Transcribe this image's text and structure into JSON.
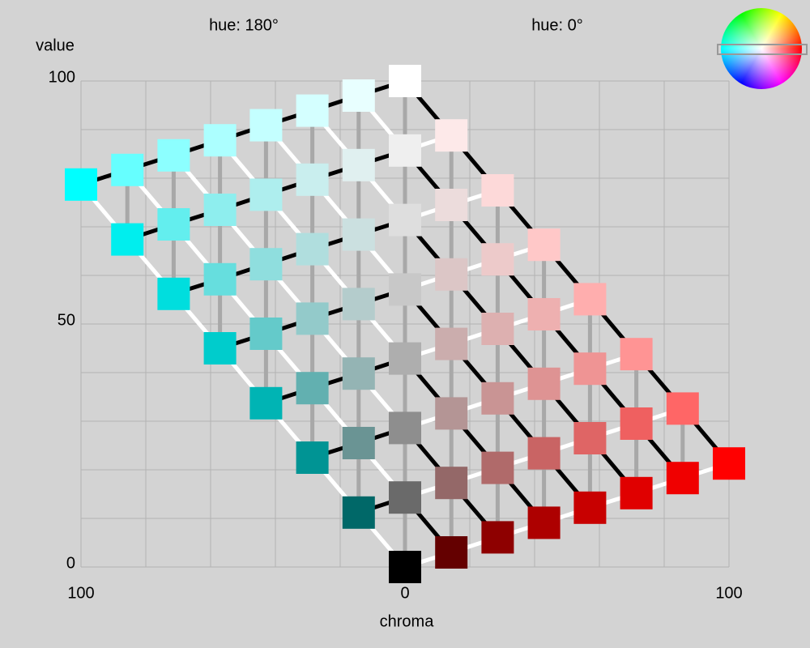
{
  "chart_data": {
    "type": "lattice",
    "xlabel": "chroma",
    "ylabel": "value",
    "hue_labels": [
      "hue: 180°",
      "hue: 0°"
    ],
    "xlim": [
      -100,
      100
    ],
    "ylim": [
      0,
      100
    ],
    "xticks": [
      {
        "value": -100,
        "label": "100"
      },
      0,
      {
        "value": 100,
        "label": "100"
      }
    ],
    "yticks": [
      0,
      50,
      100
    ],
    "grid": true,
    "xgrid": [
      -100,
      -80,
      -60,
      -40,
      -20,
      0,
      20,
      40,
      60,
      80,
      100
    ],
    "ygrid": [
      0,
      10,
      20,
      30,
      40,
      50,
      60,
      70,
      80,
      90,
      100
    ],
    "columns": [
      {
        "x": -100,
        "values": [
          78.7
        ],
        "colors": [
          "#00ffff"
        ]
      },
      {
        "x": -85.7,
        "values": [
          67.4,
          81.7
        ],
        "colors": [
          "#00eeee",
          "#66ffff"
        ]
      },
      {
        "x": -71.4,
        "values": [
          56.2,
          70.5,
          84.7
        ],
        "colors": [
          "#00dede",
          "#63eeee",
          "#8cffff"
        ]
      },
      {
        "x": -57.1,
        "values": [
          45.0,
          59.2,
          73.5,
          87.8
        ],
        "colors": [
          "#00cccc",
          "#66dede",
          "#8eeeee",
          "#acffff"
        ]
      },
      {
        "x": -42.9,
        "values": [
          33.7,
          48.0,
          62.3,
          76.6,
          90.9
        ],
        "colors": [
          "#00b4b4",
          "#64caca",
          "#8fdede",
          "#aeeeee",
          "#c4ffff"
        ]
      },
      {
        "x": -28.6,
        "values": [
          22.5,
          36.8,
          51.1,
          65.4,
          79.7,
          93.9
        ],
        "colors": [
          "#009494",
          "#62b0b0",
          "#93caca",
          "#b0dede",
          "#c9eeee",
          "#d4ffff"
        ]
      },
      {
        "x": -14.3,
        "values": [
          11.2,
          25.5,
          39.8,
          54.1,
          68.4,
          82.7,
          97.0
        ],
        "colors": [
          "#006868",
          "#6a9494",
          "#94b4b4",
          "#b4cccc",
          "#cbe0e0",
          "#e0f0f0",
          "#e8ffff"
        ]
      },
      {
        "x": 0,
        "values": [
          0,
          14.3,
          28.6,
          42.9,
          57.1,
          71.4,
          85.7,
          100
        ],
        "colors": [
          "#000000",
          "#6a6a6a",
          "#8e8e8e",
          "#aeaeae",
          "#c8c8c8",
          "#dedede",
          "#efefef",
          "#ffffff"
        ]
      },
      {
        "x": 14.3,
        "values": [
          3.0,
          17.3,
          31.6,
          45.9,
          60.2,
          74.5,
          88.8
        ],
        "colors": [
          "#640000",
          "#946868",
          "#b49595",
          "#cbadad",
          "#dcc6c6",
          "#ecdcdc",
          "#fde9e9"
        ]
      },
      {
        "x": 28.6,
        "values": [
          6.1,
          20.4,
          34.7,
          49.0,
          63.3,
          77.5
        ],
        "colors": [
          "#8e0000",
          "#b06a6a",
          "#c99494",
          "#ddb0b0",
          "#edcaca",
          "#fdd9d9"
        ]
      },
      {
        "x": 42.9,
        "values": [
          9.1,
          23.4,
          37.7,
          52.0,
          66.3
        ],
        "colors": [
          "#ad0000",
          "#c96464",
          "#de9393",
          "#eeb0b0",
          "#ffc8c8"
        ]
      },
      {
        "x": 57.1,
        "values": [
          12.2,
          26.5,
          40.8,
          55.1
        ],
        "colors": [
          "#c80000",
          "#df6565",
          "#ef9494",
          "#ffaeae"
        ]
      },
      {
        "x": 71.4,
        "values": [
          15.2,
          29.5,
          43.8
        ],
        "colors": [
          "#e00000",
          "#ef6060",
          "#ff9494"
        ]
      },
      {
        "x": 85.7,
        "values": [
          18.3,
          32.6
        ],
        "colors": [
          "#f00000",
          "#ff6666"
        ]
      },
      {
        "x": 100,
        "values": [
          21.3
        ],
        "colors": [
          "#ff0000"
        ]
      }
    ]
  }
}
